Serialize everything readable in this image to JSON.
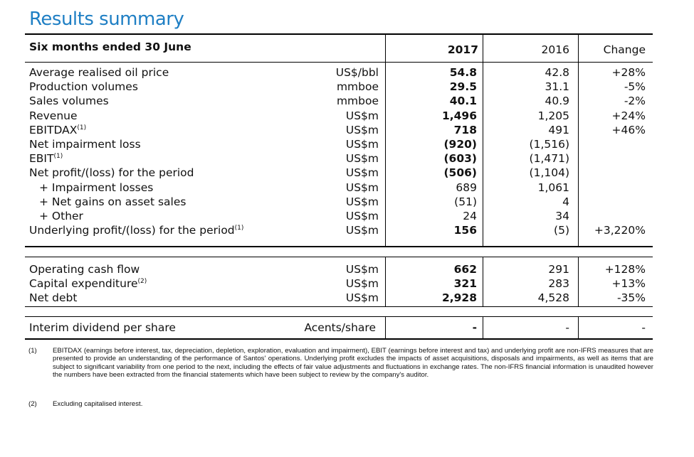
{
  "title": "Results summary",
  "header": {
    "period": "Six months ended 30 June",
    "col_2017": "2017",
    "col_2016": "2016",
    "col_change": "Change"
  },
  "section1": [
    {
      "label": "Average realised oil price",
      "sup": "",
      "unit": "US$/bbl",
      "v2017": "54.8",
      "v2016": "42.8",
      "change": "+28%"
    },
    {
      "label": "Production volumes",
      "sup": "",
      "unit": "mmboe",
      "v2017": "29.5",
      "v2016": "31.1",
      "change": "-5%"
    },
    {
      "label": "Sales volumes",
      "sup": "",
      "unit": "mmboe",
      "v2017": "40.1",
      "v2016": "40.9",
      "change": "-2%"
    },
    {
      "label": "Revenue",
      "sup": "",
      "unit": "US$m",
      "v2017": "1,496",
      "v2016": "1,205",
      "change": "+24%"
    },
    {
      "label": "EBITDAX",
      "sup": "(1)",
      "unit": "US$m",
      "v2017": "718",
      "v2016": "491",
      "change": "+46%"
    },
    {
      "label": "Net impairment loss",
      "sup": "",
      "unit": "US$m",
      "v2017": "(920)",
      "v2016": "(1,516)",
      "change": ""
    },
    {
      "label": "EBIT",
      "sup": "(1)",
      "unit": "US$m",
      "v2017": "(603)",
      "v2016": "(1,471)",
      "change": ""
    },
    {
      "label": "Net profit/(loss) for the period",
      "sup": "",
      "unit": "US$m",
      "v2017": "(506)",
      "v2016": "(1,104)",
      "change": ""
    },
    {
      "label": "+ Impairment losses",
      "sup": "",
      "unit": "US$m",
      "v2017": "689",
      "v2016": "1,061",
      "change": "",
      "indent": true,
      "plain": true
    },
    {
      "label": "+ Net gains on asset sales",
      "sup": "",
      "unit": "US$m",
      "v2017": "(51)",
      "v2016": "4",
      "change": "",
      "indent": true,
      "plain": true
    },
    {
      "label": "+ Other",
      "sup": "",
      "unit": "US$m",
      "v2017": "24",
      "v2016": "34",
      "change": "",
      "indent": true,
      "plain": true
    },
    {
      "label": "Underlying profit/(loss) for the period",
      "sup": "(1)",
      "unit": "US$m",
      "v2017": "156",
      "v2016": "(5)",
      "change": "+3,220%"
    }
  ],
  "section2": [
    {
      "label": "Operating cash flow",
      "sup": "",
      "unit": "US$m",
      "v2017": "662",
      "v2016": "291",
      "change": "+128%"
    },
    {
      "label": "Capital expenditure",
      "sup": "(2)",
      "unit": "US$m",
      "v2017": "321",
      "v2016": "283",
      "change": "+13%"
    },
    {
      "label": "Net debt",
      "sup": "",
      "unit": "US$m",
      "v2017": "2,928",
      "v2016": "4,528",
      "change": "-35%"
    }
  ],
  "section3": {
    "label": "Interim dividend per share",
    "unit": "Acents/share",
    "v2017": "-",
    "v2016": "-",
    "change": "-"
  },
  "notes": [
    {
      "num": "(1)",
      "text": "EBITDAX (earnings before interest, tax, depreciation, depletion, exploration, evaluation and impairment), EBIT (earnings before interest and tax) and underlying profit are non-IFRS measures that are presented to provide an understanding of the performance of Santos' operations. Underlying profit excludes the impacts of asset acquisitions, disposals and impairments, as well as items that are subject to significant variability from one period to the next, including the effects of fair value adjustments and fluctuations in exchange rates. The non-IFRS financial information is unaudited however the numbers have been extracted from the financial statements which have been subject to review by the company's auditor."
    },
    {
      "num": "(2)",
      "text": "Excluding capitalised interest."
    }
  ]
}
